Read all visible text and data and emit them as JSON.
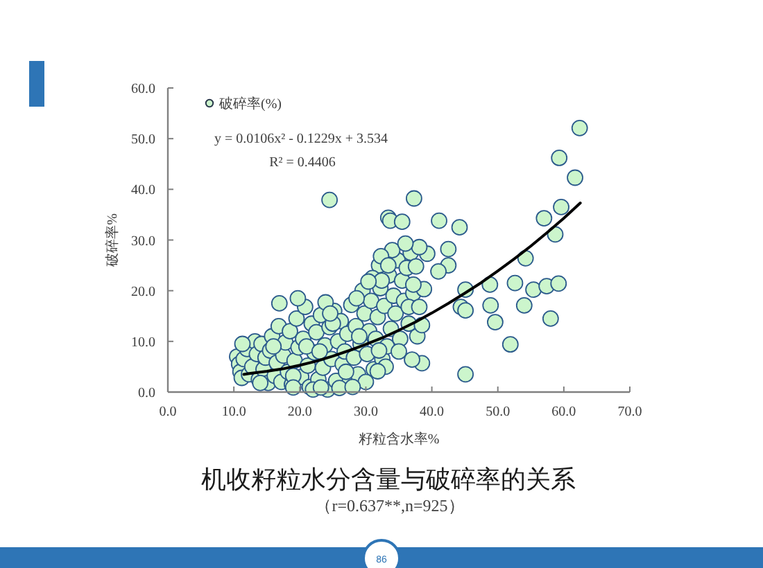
{
  "chart_data": {
    "type": "scatter",
    "title": "机收籽粒水分含量与破碎率的关系",
    "subtitle": "（r=0.637**,n=925）",
    "xlabel": "籽粒含水率%",
    "ylabel": "破碎率%",
    "annotations": [
      "y = 0.0106x² - 0.1229x + 3.534",
      "R² = 0.4406",
      "86"
    ],
    "xlim": [
      0,
      70
    ],
    "xticks": [
      {
        "value": 0,
        "label": "0.0"
      },
      {
        "value": 10,
        "label": "10.0"
      },
      {
        "value": 20,
        "label": "20.0"
      },
      {
        "value": 30,
        "label": "30.0"
      },
      {
        "value": 40,
        "label": "40.0"
      },
      {
        "value": 50,
        "label": "50.0"
      },
      {
        "value": 60,
        "label": "60.0"
      },
      {
        "value": 70,
        "label": "70.0"
      }
    ],
    "ylim": [
      0,
      60
    ],
    "yticks": [
      {
        "value": 0,
        "label": "0.0"
      },
      {
        "value": 10,
        "label": "10.0"
      },
      {
        "value": 20,
        "label": "20.0"
      },
      {
        "value": 30,
        "label": "30.0"
      },
      {
        "value": 40,
        "label": "40.0"
      },
      {
        "value": 50,
        "label": "50.0"
      },
      {
        "value": 60,
        "label": "60.0"
      }
    ],
    "grid": false,
    "legend": "top left",
    "series": [
      {
        "name": "破碎率(%)",
        "marker": "circle",
        "color": "#ccf5cc",
        "x": [
          10.5,
          10.8,
          11.0,
          11.2,
          11.5,
          12.0,
          12.3,
          12.8,
          13.2,
          13.5,
          13.8,
          14.2,
          14.5,
          14.8,
          15.2,
          15.5,
          15.8,
          16.2,
          16.5,
          16.8,
          17.2,
          17.5,
          17.8,
          18.2,
          18.5,
          18.8,
          19.2,
          19.5,
          19.8,
          20.2,
          20.5,
          20.8,
          21.2,
          21.5,
          21.8,
          22.2,
          22.5,
          22.8,
          23.2,
          23.5,
          23.8,
          24.2,
          24.5,
          24.8,
          25.2,
          25.5,
          25.8,
          26.2,
          26.5,
          26.8,
          27.2,
          27.5,
          27.8,
          28.2,
          28.5,
          28.8,
          29.2,
          29.5,
          29.8,
          30.2,
          30.5,
          30.8,
          31.2,
          31.5,
          31.8,
          32.2,
          32.5,
          32.8,
          33.2,
          33.5,
          33.8,
          34.2,
          34.5,
          34.8,
          35.2,
          35.5,
          35.8,
          36.2,
          36.5,
          36.8,
          37.2,
          37.8,
          35.0,
          33.0,
          30.0,
          26.0,
          28.0,
          22.0,
          19.0,
          14.0,
          16.0,
          21.0,
          27.0,
          29.0,
          32.0,
          34.0,
          31.0,
          25.0,
          23.0,
          62.4,
          59.3,
          61.7,
          24.5,
          37.3,
          33.4,
          33.7,
          35.5,
          41.1,
          44.2,
          57.0,
          59.6,
          58.7,
          39.3,
          42.5,
          42.5,
          41.0,
          38.1,
          36.0,
          32.3,
          54.2,
          48.8,
          52.6,
          48.9,
          49.6,
          54.0,
          55.4,
          57.4,
          59.2,
          58.0,
          51.9,
          45.1,
          44.4,
          45.1,
          45.1,
          38.5,
          37.0,
          38.8,
          38.5,
          37.2,
          37.6,
          36.5,
          38.1,
          31.8,
          32.0,
          16.9,
          19.7,
          23.9,
          24.6,
          11.3,
          19.0,
          23.2,
          32.4,
          30.4,
          28.6,
          33.4
        ],
        "values": [
          7.0,
          5.5,
          4.0,
          2.8,
          6.5,
          8.5,
          3.5,
          5.0,
          10.0,
          7.5,
          2.5,
          9.5,
          4.5,
          6.8,
          1.8,
          8.2,
          11.0,
          3.2,
          5.8,
          13.0,
          2.0,
          7.2,
          9.8,
          4.0,
          12.0,
          1.5,
          6.2,
          14.5,
          8.8,
          3.0,
          10.5,
          16.8,
          5.2,
          1.0,
          13.5,
          7.8,
          11.8,
          2.5,
          15.2,
          4.8,
          9.2,
          0.5,
          12.8,
          6.5,
          16.0,
          2.2,
          10.0,
          14.0,
          5.5,
          8.0,
          11.5,
          1.8,
          17.2,
          6.8,
          13.0,
          3.5,
          9.5,
          20.0,
          15.5,
          7.5,
          12.0,
          18.0,
          4.5,
          10.5,
          14.8,
          20.5,
          6.5,
          17.0,
          9.0,
          23.0,
          12.5,
          19.0,
          15.5,
          26.0,
          10.5,
          22.0,
          18.0,
          24.5,
          13.5,
          27.5,
          19.5,
          11.0,
          8.0,
          5.0,
          2.0,
          0.8,
          1.0,
          0.5,
          3.2,
          1.8,
          9.0,
          9.0,
          4.0,
          11.0,
          25.0,
          28.0,
          22.5,
          13.5,
          8.0,
          52.1,
          46.2,
          42.3,
          37.9,
          38.2,
          34.4,
          33.8,
          33.6,
          33.8,
          32.5,
          34.3,
          36.5,
          31.1,
          27.3,
          28.2,
          25.0,
          23.8,
          28.6,
          29.3,
          26.8,
          26.4,
          21.2,
          21.5,
          17.1,
          13.8,
          17.1,
          20.2,
          20.9,
          21.4,
          14.5,
          9.4,
          20.2,
          16.8,
          16.1,
          3.5,
          5.7,
          6.4,
          20.3,
          13.2,
          21.2,
          24.8,
          16.8,
          16.8,
          4.1,
          8.2,
          17.5,
          18.5,
          17.7,
          15.5,
          9.5,
          0.9,
          0.9,
          22.0,
          21.8,
          18.5,
          25.0
        ]
      },
      {
        "type": "line",
        "color": "#000000",
        "x": [
          11.5,
          12.5,
          15,
          17.5,
          20,
          22.5,
          25,
          27.5,
          30,
          32.5,
          35,
          37.5,
          40,
          42.5,
          45,
          47.5,
          50,
          52.5,
          55,
          57.5,
          60,
          62.5
        ],
        "values": [
          3.5,
          3.7,
          4.1,
          4.6,
          5.3,
          6.1,
          7.1,
          8.2,
          9.4,
          10.7,
          12.2,
          13.8,
          15.6,
          17.5,
          19.5,
          21.6,
          23.9,
          26.3,
          28.8,
          31.5,
          34.3,
          37.3
        ]
      }
    ]
  }
}
